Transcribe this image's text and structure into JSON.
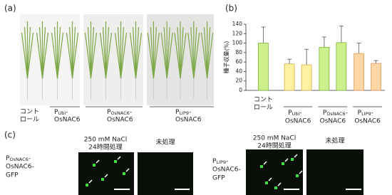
{
  "panel_labels": [
    "(a)",
    "(b)",
    "(c)"
  ],
  "a_labels": [
    {
      "line1": "コント",
      "line2": "ロール"
    },
    {
      "prefix": "P",
      "sub": "Ubi",
      "after": "-",
      "line2": "OsNAC6"
    },
    {
      "prefix": "P",
      "sub": "OsNAC6",
      "after": "-",
      "line2": "OsNAC6"
    },
    {
      "prefix": "P",
      "sub": "LIP9",
      "after": "-",
      "line2": "OsNAC6"
    }
  ],
  "c_labels": {
    "treated": [
      "250 mM NaCl",
      "24時間処理"
    ],
    "untreated": "未処理",
    "constructs": [
      {
        "prefix": "P",
        "sub": "OsNAC6",
        "after": "-",
        "line2": "OsNAC6-",
        "line3": "GFP"
      },
      {
        "prefix": "P",
        "sub": "LIP9",
        "after": "-",
        "line2": "OsNAC6-",
        "line3": "GFP"
      }
    ]
  },
  "chart_data": {
    "type": "bar",
    "ylabel": "種子収量(%)",
    "ylim": [
      0,
      140
    ],
    "yticks": [
      0,
      20,
      40,
      60,
      80,
      100,
      120,
      140
    ],
    "groups": [
      {
        "line1": "コント",
        "line2": "ロール",
        "values": [
          100
        ],
        "errors": [
          34
        ],
        "color": "#cdf08c",
        "edge": "#78b43c"
      },
      {
        "prefix": "P",
        "sub": "Ubi",
        "after": "-",
        "line2": "OsNAC6",
        "values": [
          56,
          54
        ],
        "errors": [
          10,
          33
        ],
        "color": "#fff1a2",
        "edge": "#d2b04a"
      },
      {
        "prefix": "P",
        "sub": "OsNAC6",
        "after": "-",
        "line2": "OsNAC6",
        "values": [
          91,
          101
        ],
        "errors": [
          22,
          35
        ],
        "color": "#cdf08c",
        "edge": "#78b43c"
      },
      {
        "prefix": "P",
        "sub": "LIP9",
        "after": "-",
        "line2": "OsNAC6",
        "values": [
          78,
          57
        ],
        "errors": [
          22,
          6
        ],
        "color": "#fdd6a6",
        "edge": "#dc9c58"
      }
    ]
  }
}
